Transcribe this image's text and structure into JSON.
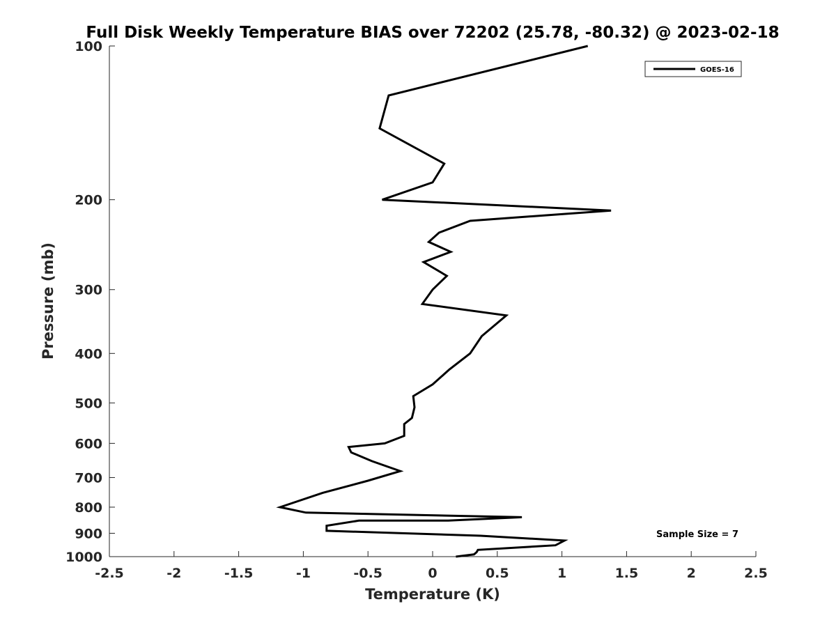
{
  "chart_data": {
    "type": "line",
    "title": "Full Disk Weekly Temperature BIAS over 72202 (25.78, -80.32) @ 2023-02-18",
    "xlabel": "Temperature (K)",
    "ylabel": "Pressure (mb)",
    "xlim": [
      -2.5,
      2.5
    ],
    "ylim": [
      100,
      1000
    ],
    "yscale": "log",
    "y_reversed": true,
    "grid": false,
    "legend_position": "top-right",
    "xticks": [
      -2.5,
      -2,
      -1.5,
      -1,
      -0.5,
      0,
      0.5,
      1,
      1.5,
      2,
      2.5
    ],
    "xtick_labels": [
      "-2.5",
      "-2",
      "-1.5",
      "-1",
      "-0.5",
      "0",
      "0.5",
      "1",
      "1.5",
      "2",
      "2.5"
    ],
    "yticks": [
      100,
      200,
      300,
      400,
      500,
      600,
      700,
      800,
      900,
      1000
    ],
    "ytick_labels": [
      "100",
      "200",
      "300",
      "400",
      "500",
      "600",
      "700",
      "800",
      "900",
      "1000"
    ],
    "series": [
      {
        "name": "GOES-16",
        "color": "#000000",
        "x": [
          1.2,
          -0.34,
          -0.41,
          0.09,
          0.0,
          -0.39,
          1.38,
          0.29,
          0.05,
          -0.03,
          0.14,
          -0.07,
          0.11,
          0.0,
          -0.08,
          0.57,
          0.38,
          0.29,
          0.13,
          0.0,
          -0.15,
          -0.14,
          -0.16,
          -0.22,
          -0.22,
          -0.37,
          -0.65,
          -0.63,
          -0.47,
          -0.25,
          -0.5,
          -0.85,
          -1.18,
          -0.98,
          0.69,
          0.12,
          -0.57,
          -0.82,
          -0.82,
          0.37,
          1.02,
          0.95,
          0.35,
          0.34,
          0.32,
          0.18
        ],
        "y": [
          100,
          125,
          145,
          170,
          185,
          200,
          210,
          220,
          232,
          242,
          253,
          265,
          282,
          300,
          320,
          337,
          370,
          400,
          430,
          460,
          485,
          510,
          535,
          550,
          580,
          600,
          610,
          625,
          650,
          680,
          710,
          750,
          800,
          820,
          837,
          850,
          850,
          870,
          890,
          910,
          930,
          950,
          970,
          980,
          990,
          1000
        ]
      }
    ],
    "annotations": [
      {
        "text": "Sample Size = 7",
        "position": "bottom-right"
      }
    ]
  }
}
